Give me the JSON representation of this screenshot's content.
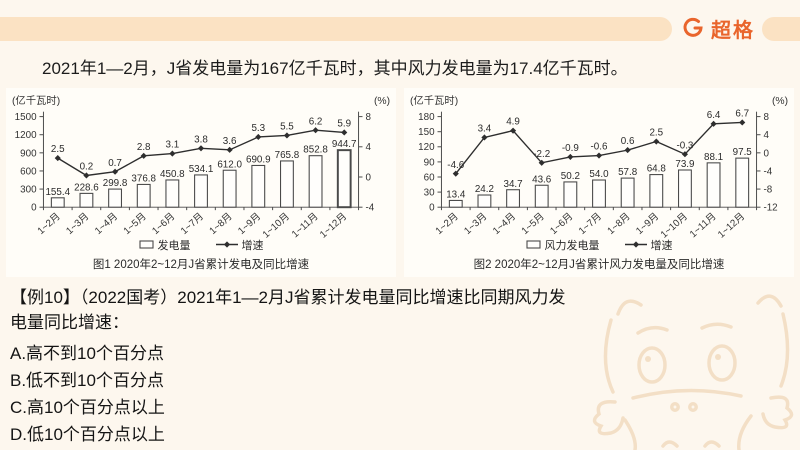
{
  "brand": {
    "logo_text": "超格"
  },
  "colors": {
    "accent_orange": "#e9652c",
    "header_band": "#fbe2c3",
    "page_background": "#fdf7ee",
    "chart_panel": "#fffdf8",
    "chart_ink": "#2e2e2e"
  },
  "intro": "2021年1—2月，J省发电量为167亿千瓦时，其中风力发电量为17.4亿千瓦时。",
  "question": {
    "label": "【例10】",
    "source": "（2022国考）",
    "stem": "2021年1—2月J省累计发电量同比增速比同期风力发电量同比增速：",
    "options": [
      "A.高不到10个百分点",
      "B.低不到10个百分点",
      "C.高10个百分点以上",
      "D.低10个百分点以上"
    ]
  },
  "chart_data": [
    {
      "type": "bar+line",
      "title": "图1  2020年2~12月J省累计发电及同比增速",
      "unit_left": "(亿千瓦时)",
      "unit_right": "(%)",
      "categories": [
        "1~2月",
        "1~3月",
        "1~4月",
        "1~5月",
        "1~6月",
        "1~7月",
        "1~8月",
        "1~9月",
        "1~10月",
        "1~11月",
        "1~12月"
      ],
      "series": [
        {
          "name": "发电量",
          "type": "bar",
          "axis": "left",
          "values": [
            "155.4",
            "228.6",
            "299.8",
            "376.8",
            "450.8",
            "534.1",
            "612.0",
            "690.9",
            "765.8",
            "852.8",
            "944.7"
          ]
        },
        {
          "name": "增速",
          "type": "line",
          "axis": "right",
          "values": [
            "2.5",
            "0.2",
            "0.7",
            "2.8",
            "3.1",
            "3.8",
            "3.6",
            "5.3",
            "5.5",
            "6.2",
            "5.9"
          ]
        }
      ],
      "left_axis": {
        "min": 0,
        "max": 1500,
        "ticks": [
          1500,
          1200,
          900,
          600,
          300,
          0
        ]
      },
      "right_axis": {
        "min": -4,
        "max": 8,
        "ticks": [
          8,
          4,
          0,
          -4
        ]
      },
      "grid": false,
      "legend_position": "bottom",
      "emphasize_last_bar": true
    },
    {
      "type": "bar+line",
      "title": "图2  2020年2~12月J省累计风力发电量及同比增速",
      "unit_left": "(亿千瓦时)",
      "unit_right": "(%)",
      "categories": [
        "1~2月",
        "1~3月",
        "1~4月",
        "1~5月",
        "1~6月",
        "1~7月",
        "1~8月",
        "1~9月",
        "1~10月",
        "1~11月",
        "1~12月"
      ],
      "series": [
        {
          "name": "风力发电量",
          "type": "bar",
          "axis": "left",
          "values": [
            "13.4",
            "24.2",
            "34.7",
            "43.6",
            "50.2",
            "54.0",
            "57.8",
            "64.8",
            "73.9",
            "88.1",
            "97.5"
          ]
        },
        {
          "name": "增速",
          "type": "line",
          "axis": "right",
          "values": [
            "-4.6",
            "3.4",
            "4.9",
            "-2.2",
            "-0.9",
            "-0.6",
            "0.6",
            "2.5",
            "-0.3",
            "6.4",
            "6.7"
          ]
        }
      ],
      "left_axis": {
        "min": 0,
        "max": 180,
        "ticks": [
          180,
          150,
          120,
          90,
          60,
          30,
          0
        ]
      },
      "right_axis": {
        "min": -12,
        "max": 8,
        "ticks": [
          8,
          4,
          0,
          -4,
          -8,
          -12
        ]
      },
      "grid": false,
      "legend_position": "bottom",
      "emphasize_last_bar": false
    }
  ]
}
